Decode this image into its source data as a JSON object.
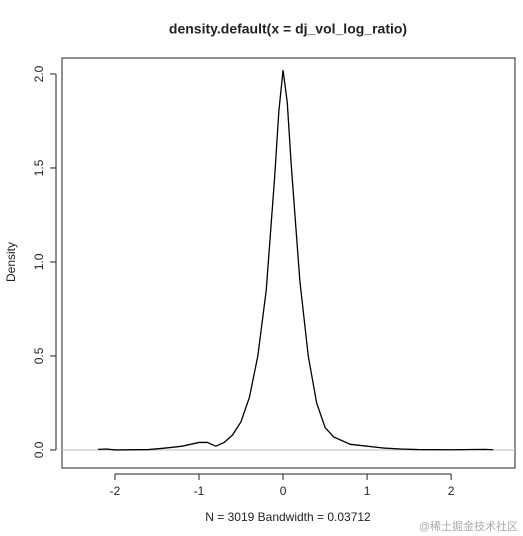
{
  "chart_data": {
    "type": "line",
    "title": "density.default(x = dj_vol_log_ratio)",
    "x_label": "N = 3019   Bandwidth = 0.03712",
    "y_label": "Density",
    "watermark": "@稀土掘金技术社区",
    "color": "#000000",
    "x": [
      -2.2,
      -2.1,
      -2.0,
      -1.6,
      -1.4,
      -1.2,
      -1.0,
      -0.9,
      -0.8,
      -0.7,
      -0.6,
      -0.5,
      -0.4,
      -0.3,
      -0.2,
      -0.1,
      -0.05,
      0,
      0.05,
      0.1,
      0.2,
      0.3,
      0.4,
      0.5,
      0.6,
      0.8,
      1.0,
      1.2,
      1.4,
      1.6,
      2.0,
      2.4,
      2.5
    ],
    "values": [
      0.003,
      0.005,
      0,
      0.002,
      0.01,
      0.02,
      0.04,
      0.04,
      0.02,
      0.04,
      0.08,
      0.15,
      0.28,
      0.5,
      0.85,
      1.45,
      1.8,
      2.02,
      1.85,
      1.5,
      0.9,
      0.5,
      0.25,
      0.12,
      0.07,
      0.03,
      0.02,
      0.01,
      0.005,
      0.002,
      0.001,
      0.003,
      0.001
    ],
    "xlim": [
      -2.63,
      2.76
    ],
    "ylim": [
      -0.096,
      2.085
    ],
    "xticks": [
      -2,
      -1,
      0,
      1,
      2
    ],
    "yticks": [
      {
        "value": 0,
        "label": "0.0"
      },
      {
        "value": 0.5,
        "label": "0.5"
      },
      {
        "value": 1,
        "label": "1.0"
      },
      {
        "value": 1.5,
        "label": "1.5"
      },
      {
        "value": 2,
        "label": "2.0"
      }
    ]
  }
}
